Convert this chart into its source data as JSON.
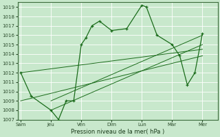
{
  "bg_color": "#c8e8cc",
  "grid_color": "#ffffff",
  "line_color": "#1a6b1a",
  "xlabel": "Pression niveau de la mer( hPa )",
  "ylim": [
    1007,
    1019.5
  ],
  "yticks": [
    1007,
    1008,
    1009,
    1010,
    1011,
    1012,
    1013,
    1014,
    1015,
    1016,
    1017,
    1018,
    1019
  ],
  "xtick_labels": [
    "Sam",
    "Jeu",
    "Ven",
    "Dim",
    "Lun",
    "Mar",
    "Mer"
  ],
  "xtick_positions": [
    0,
    2,
    4,
    6,
    8,
    10,
    12
  ],
  "xlim": [
    -0.2,
    13.0
  ],
  "main_line_x": [
    0,
    0.7,
    2,
    2.5,
    3,
    3.5,
    4,
    4.3,
    4.7,
    5.2,
    6,
    7,
    8,
    8.3,
    9,
    10,
    10.5,
    11,
    11.5,
    12
  ],
  "main_line_y": [
    1012,
    1009.5,
    1008,
    1007,
    1009,
    1009,
    1015,
    1015.7,
    1017,
    1017.5,
    1016.5,
    1016.7,
    1019.2,
    1019,
    1016,
    1015,
    1013.8,
    1010.7,
    1012,
    1016.2
  ],
  "trend_lines": [
    {
      "x": [
        0,
        12
      ],
      "y": [
        1012,
        1014.5
      ]
    },
    {
      "x": [
        0,
        12
      ],
      "y": [
        1009,
        1013.8
      ]
    },
    {
      "x": [
        2,
        12
      ],
      "y": [
        1009,
        1016.0
      ]
    },
    {
      "x": [
        2,
        12
      ],
      "y": [
        1008,
        1015.0
      ]
    }
  ]
}
